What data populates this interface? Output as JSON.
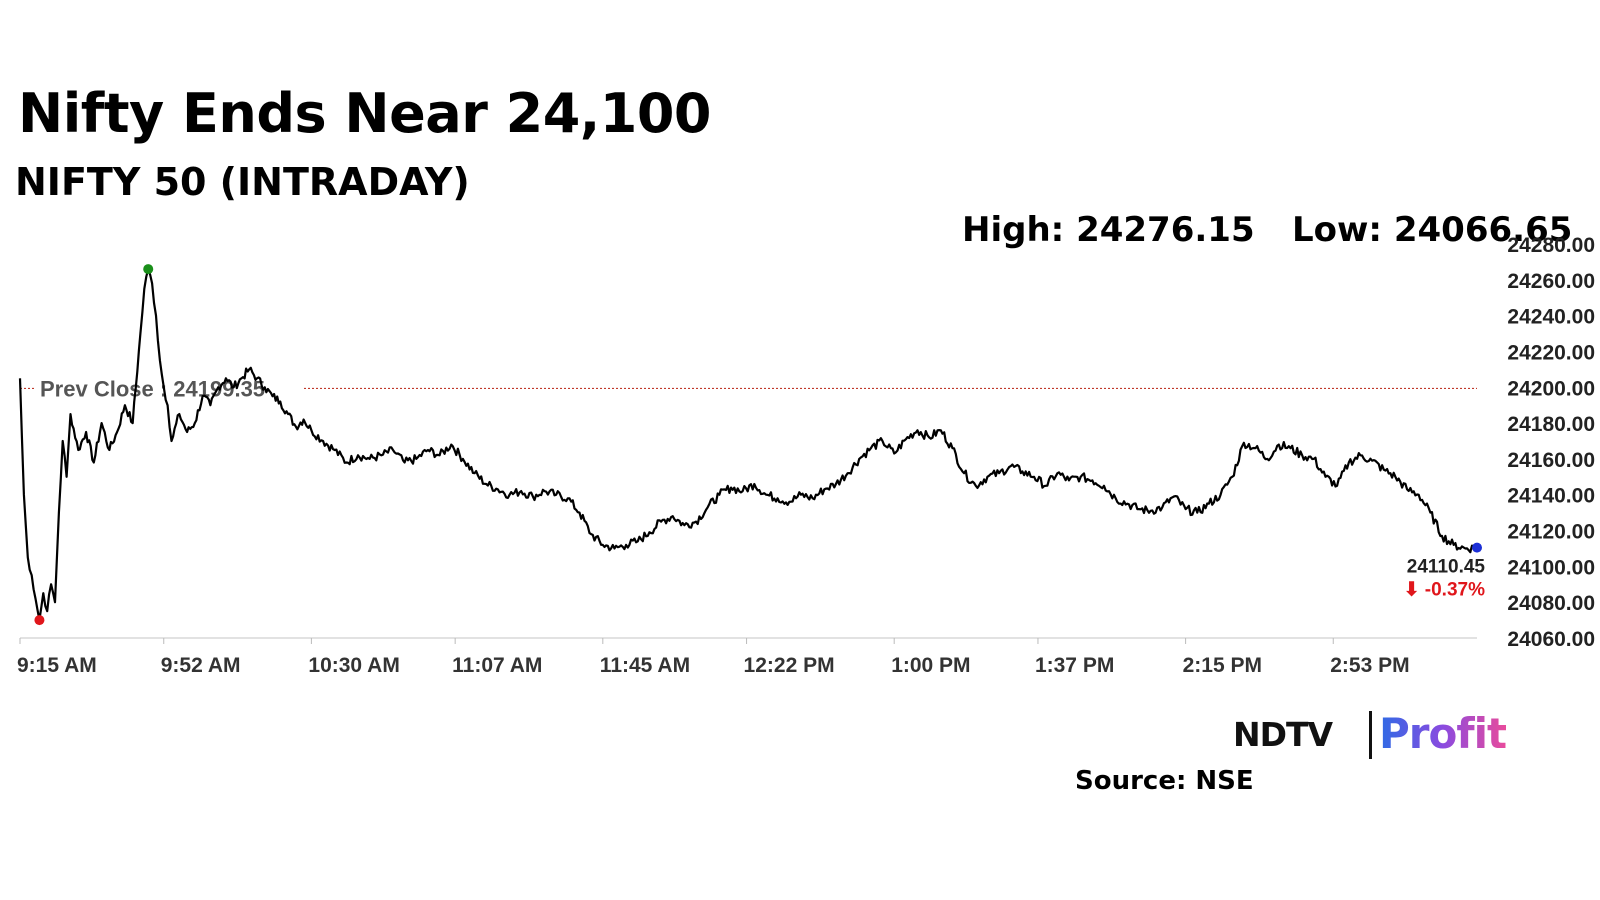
{
  "header": {
    "title": "Nifty Ends Near 24,100",
    "subtitle": "NIFTY 50 (INTRADAY)"
  },
  "stats": {
    "high_text": "High: 24276.15",
    "low_text": "Low: 24066.65"
  },
  "footer": {
    "logo_ndtv": "NDTV",
    "logo_profit": "Profit",
    "source": "Source: NSE"
  },
  "colors": {
    "line": "#000000",
    "prev_close_line": "#c0392b",
    "high_marker": "#1a8f1a",
    "low_marker": "#e0161b",
    "last_marker": "#1c2fd6",
    "change_negative": "#e0161b"
  },
  "chart_data": {
    "type": "line",
    "title": "NIFTY 50 (INTRADAY)",
    "xlabel": "",
    "ylabel": "",
    "ylim": [
      24060,
      24280
    ],
    "xlim_minutes": [
      555,
      930
    ],
    "grid": false,
    "y_ticks": [
      "24060.00",
      "24080.00",
      "24100.00",
      "24120.00",
      "24140.00",
      "24160.00",
      "24180.00",
      "24200.00",
      "24220.00",
      "24240.00",
      "24260.00",
      "24280.00"
    ],
    "x_ticks": [
      {
        "label": "9:15 AM",
        "minute": 555
      },
      {
        "label": "9:52 AM",
        "minute": 592
      },
      {
        "label": "10:30 AM",
        "minute": 630
      },
      {
        "label": "11:07 AM",
        "minute": 667
      },
      {
        "label": "11:45 AM",
        "minute": 705
      },
      {
        "label": "12:22 PM",
        "minute": 742
      },
      {
        "label": "1:00 PM",
        "minute": 780
      },
      {
        "label": "1:37 PM",
        "minute": 817
      },
      {
        "label": "2:15 PM",
        "minute": 855
      },
      {
        "label": "2:53 PM",
        "minute": 893
      }
    ],
    "prev_close": 24199.35,
    "prev_close_label": "Prev Close : 24199.35",
    "high": {
      "time_minute": 588,
      "value": 24266
    },
    "low": {
      "time_minute": 560,
      "value": 24070
    },
    "last": {
      "time_minute": 930,
      "value": 24110.45
    },
    "last_label": "24110.45",
    "change_label": "⬇ -0.37%",
    "series": [
      {
        "x_minutes": [
          555,
          556,
          557,
          558,
          559,
          560,
          561,
          562,
          563,
          564,
          565,
          566,
          567,
          568,
          570,
          572,
          574,
          576,
          578,
          580,
          582,
          584,
          586,
          587,
          588,
          589,
          590,
          591,
          592,
          593,
          594,
          596,
          598,
          600,
          602,
          604,
          606,
          608,
          610,
          612,
          614,
          616,
          618,
          620,
          622,
          624,
          626,
          628,
          630,
          633,
          636,
          639,
          642,
          645,
          648,
          651,
          654,
          657,
          660,
          663,
          666,
          669,
          672,
          675,
          678,
          681,
          684,
          687,
          690,
          693,
          696,
          699,
          702,
          705,
          708,
          711,
          714,
          717,
          720,
          723,
          726,
          729,
          732,
          735,
          738,
          741,
          744,
          747,
          750,
          753,
          756,
          759,
          762,
          765,
          768,
          771,
          774,
          777,
          780,
          783,
          786,
          789,
          792,
          795,
          798,
          801,
          804,
          807,
          810,
          813,
          816,
          819,
          822,
          825,
          828,
          831,
          834,
          837,
          840,
          843,
          846,
          849,
          852,
          855,
          858,
          861,
          864,
          867,
          870,
          873,
          876,
          879,
          882,
          885,
          888,
          891,
          894,
          897,
          900,
          903,
          906,
          909,
          912,
          915,
          918,
          921,
          924,
          927,
          930
        ],
        "values": [
          24205,
          24140,
          24105,
          24095,
          24082,
          24070,
          24085,
          24075,
          24090,
          24080,
          24130,
          24170,
          24150,
          24185,
          24165,
          24175,
          24158,
          24180,
          24165,
          24175,
          24190,
          24180,
          24230,
          24255,
          24266,
          24258,
          24240,
          24215,
          24200,
          24190,
          24170,
          24185,
          24175,
          24180,
          24195,
          24190,
          24200,
          24205,
          24200,
          24205,
          24210,
          24205,
          24200,
          24195,
          24192,
          24185,
          24178,
          24182,
          24176,
          24170,
          24165,
          24158,
          24162,
          24160,
          24162,
          24165,
          24158,
          24160,
          24165,
          24162,
          24168,
          24160,
          24152,
          24146,
          24143,
          24140,
          24142,
          24139,
          24142,
          24140,
          24138,
          24130,
          24118,
          24112,
          24110,
          24112,
          24114,
          24119,
          24125,
          24128,
          24123,
          24125,
          24133,
          24140,
          24144,
          24142,
          24146,
          24140,
          24138,
          24136,
          24140,
          24138,
          24143,
          24146,
          24152,
          24160,
          24166,
          24170,
          24163,
          24171,
          24176,
          24172,
          24176,
          24166,
          24152,
          24145,
          24150,
          24152,
          24156,
          24153,
          24150,
          24145,
          24152,
          24148,
          24150,
          24148,
          24145,
          24138,
          24135,
          24132,
          24131,
          24133,
          24139,
          24132,
          24130,
          24135,
          24140,
          24150,
          24169,
          24166,
          24160,
          24168,
          24166,
          24162,
          24160,
          24150,
          24145,
          24158,
          24162,
          24159,
          24154,
          24150,
          24143,
          24140,
          24130,
          24117,
          24112,
          24110,
          24110.45
        ]
      }
    ]
  }
}
